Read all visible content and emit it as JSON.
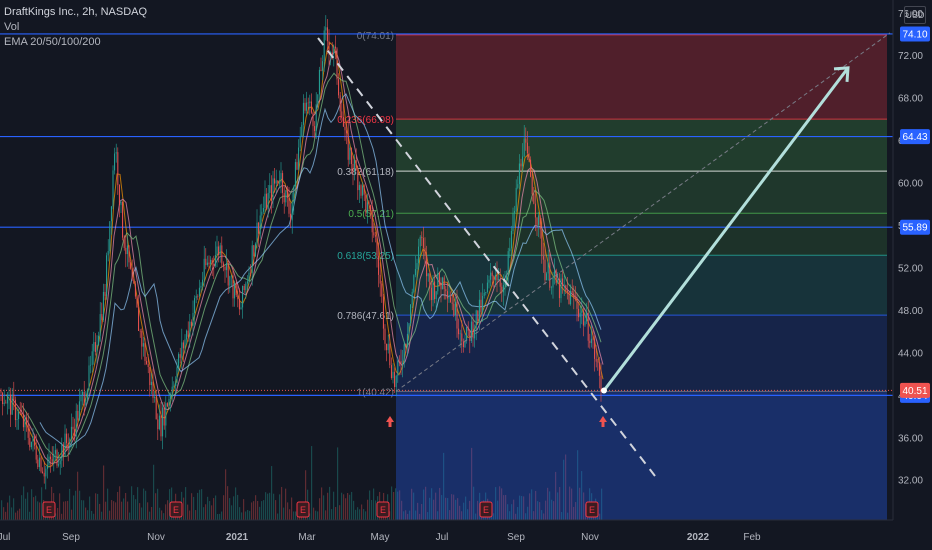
{
  "header": {
    "title": "DraftKings Inc., 2h, NASDAQ",
    "volume_label": "Vol",
    "ema_label": "EMA 20/50/100/200"
  },
  "currency": "USD",
  "colors": {
    "background": "#131722",
    "up": "#26a69a",
    "down": "#ef5350",
    "hline": "#2962ff",
    "arrow": "#b2dfdb",
    "earnings": "#f23645"
  },
  "chart_data": {
    "type": "candlestick",
    "y_axis": {
      "ticks": [
        "76.00",
        "72.00",
        "68.00",
        "64.00",
        "60.00",
        "56.00",
        "52.00",
        "48.00",
        "44.00",
        "40.00",
        "36.00",
        "32.00"
      ],
      "range": [
        28.3,
        77.3
      ]
    },
    "x_axis": {
      "ticks": [
        "Jul",
        "Sep",
        "Nov",
        "2021",
        "Mar",
        "May",
        "Jul",
        "Sep",
        "Nov",
        "2022",
        "Feb"
      ]
    },
    "price_path": [
      [
        0,
        40.5
      ],
      [
        20,
        38
      ],
      [
        45,
        33
      ],
      [
        70,
        36
      ],
      [
        90,
        42
      ],
      [
        105,
        50
      ],
      [
        115,
        64
      ],
      [
        122,
        56
      ],
      [
        140,
        46
      ],
      [
        160,
        37
      ],
      [
        175,
        42
      ],
      [
        190,
        47
      ],
      [
        205,
        52
      ],
      [
        220,
        54
      ],
      [
        240,
        48
      ],
      [
        260,
        57
      ],
      [
        280,
        61
      ],
      [
        290,
        57
      ],
      [
        305,
        68
      ],
      [
        315,
        66
      ],
      [
        325,
        74
      ],
      [
        335,
        72
      ],
      [
        345,
        64
      ],
      [
        360,
        60
      ],
      [
        375,
        55
      ],
      [
        385,
        46
      ],
      [
        395,
        41
      ],
      [
        405,
        45
      ],
      [
        420,
        55
      ],
      [
        430,
        50
      ],
      [
        445,
        51
      ],
      [
        465,
        45
      ],
      [
        480,
        48
      ],
      [
        495,
        52
      ],
      [
        505,
        50
      ],
      [
        515,
        58
      ],
      [
        523,
        64
      ],
      [
        532,
        60
      ],
      [
        545,
        52
      ],
      [
        560,
        50
      ],
      [
        575,
        49
      ],
      [
        590,
        46
      ],
      [
        602,
        40.5
      ]
    ],
    "fibonacci": {
      "levels": [
        {
          "ratio": "0",
          "price": 74.01,
          "label": "0(74.01)"
        },
        {
          "ratio": "0.236",
          "price": 66.08,
          "label": "0.236(66.08)"
        },
        {
          "ratio": "0.382",
          "price": 61.18,
          "label": "0.382(61.18)"
        },
        {
          "ratio": "0.5",
          "price": 57.21,
          "label": "0.5(57.21)"
        },
        {
          "ratio": "0.618",
          "price": 53.25,
          "label": "0.618(53.25)"
        },
        {
          "ratio": "0.786",
          "price": 47.61,
          "label": "0.786(47.61)"
        },
        {
          "ratio": "1",
          "price": 40.42,
          "label": "1(40.42)"
        }
      ]
    },
    "horizontal_lines": [
      {
        "price": 74.1,
        "label": "74.10",
        "color": "#2962ff"
      },
      {
        "price": 64.43,
        "label": "64.43",
        "color": "#2962ff"
      },
      {
        "price": 55.89,
        "label": "55.89",
        "color": "#2962ff"
      },
      {
        "price": 40.04,
        "label": "40.04",
        "color": "#2962ff"
      }
    ],
    "last_price": {
      "price": 40.51,
      "label": "40.51"
    },
    "earnings_marker": "E",
    "trend_arrow": {
      "from": 40.5,
      "to": 70.9
    }
  }
}
